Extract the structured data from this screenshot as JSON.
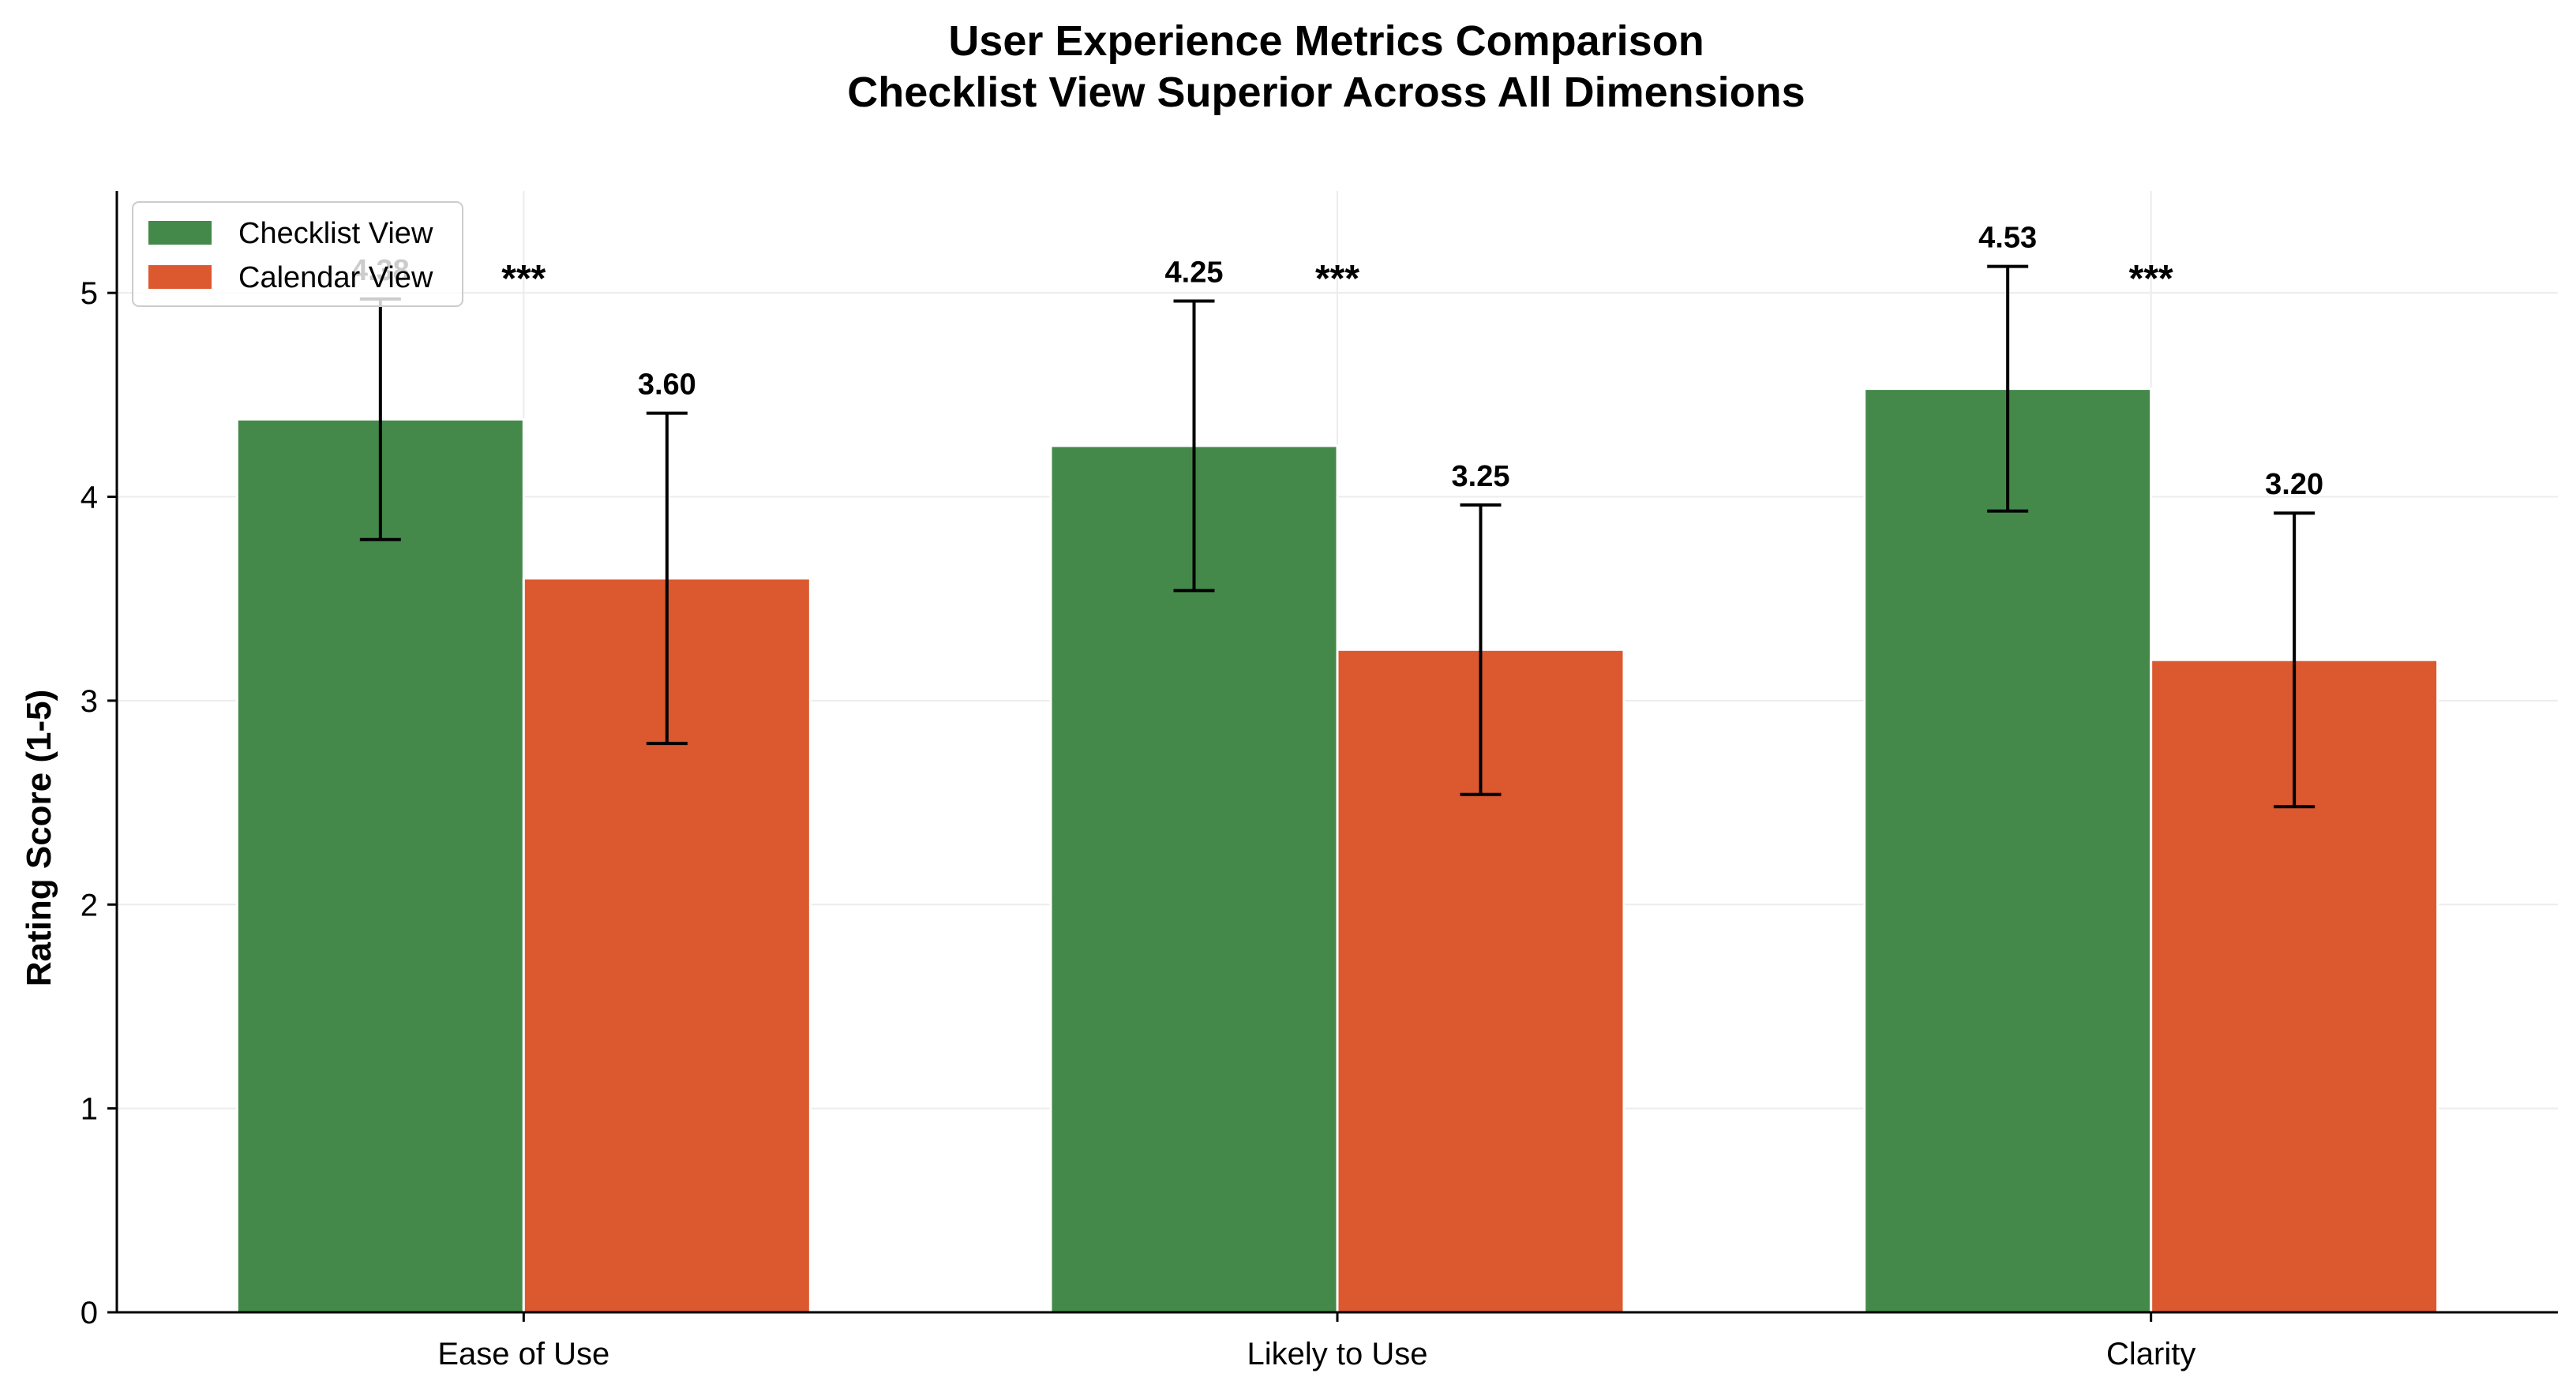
{
  "chart_data": {
    "type": "bar",
    "title": "User Experience Metrics Comparison",
    "subtitle": "Checklist View Superior Across All Dimensions",
    "xlabel": "",
    "ylabel": "Rating Score (1-5)",
    "ylim": [
      0,
      5.5
    ],
    "yticks": [
      "0",
      "1",
      "2",
      "3",
      "4",
      "5"
    ],
    "categories": [
      "Ease of Use",
      "Likely to Use",
      "Clarity"
    ],
    "series": [
      {
        "name": "Checklist View",
        "color": "#44894a",
        "values": [
          4.38,
          4.25,
          4.53
        ],
        "errors": [
          0.59,
          0.71,
          0.6
        ],
        "labels": [
          "4.38",
          "4.25",
          "4.53"
        ]
      },
      {
        "name": "Calendar View",
        "color": "#dc582f",
        "values": [
          3.6,
          3.25,
          3.2
        ],
        "errors": [
          0.81,
          0.71,
          0.72
        ],
        "labels": [
          "3.60",
          "3.25",
          "3.20"
        ]
      }
    ],
    "significance": [
      "***",
      "***",
      "***"
    ],
    "legend_position": "upper-left",
    "grid": true
  }
}
